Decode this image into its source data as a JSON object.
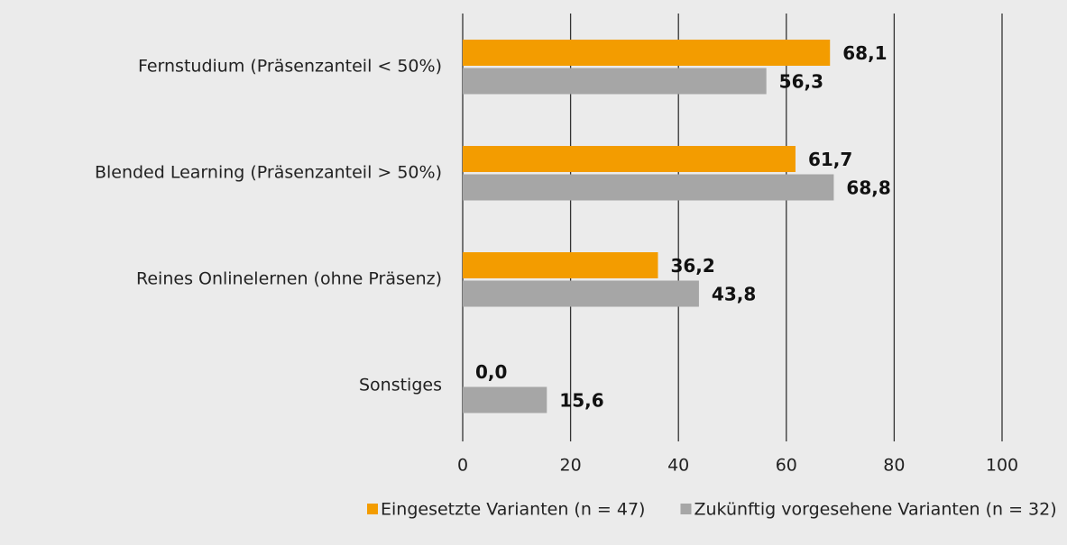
{
  "chart_data": {
    "type": "bar",
    "orientation": "horizontal",
    "categories": [
      "Fernstudium (Präsenzanteil < 50%)",
      "Blended Learning (Präsenzanteil > 50%)",
      "Reines Onlinelernen (ohne Präsenz)",
      "Sonstiges"
    ],
    "series": [
      {
        "name": "Eingesetzte Varianten (n = 47)",
        "color": "#f39c00",
        "values": [
          68.1,
          61.7,
          36.2,
          0.0
        ],
        "value_labels": [
          "68,1",
          "61,7",
          "36,2",
          "0,0"
        ]
      },
      {
        "name": "Zukünftig vorgesehene Varianten (n = 32)",
        "color": "#a6a6a6",
        "values": [
          56.3,
          68.8,
          43.8,
          15.6
        ],
        "value_labels": [
          "56,3",
          "68,8",
          "43,8",
          "15,6"
        ]
      }
    ],
    "xlim": [
      0,
      100
    ],
    "xticks": [
      0,
      20,
      40,
      60,
      80,
      100
    ],
    "grid": true,
    "legend": "bottom"
  }
}
